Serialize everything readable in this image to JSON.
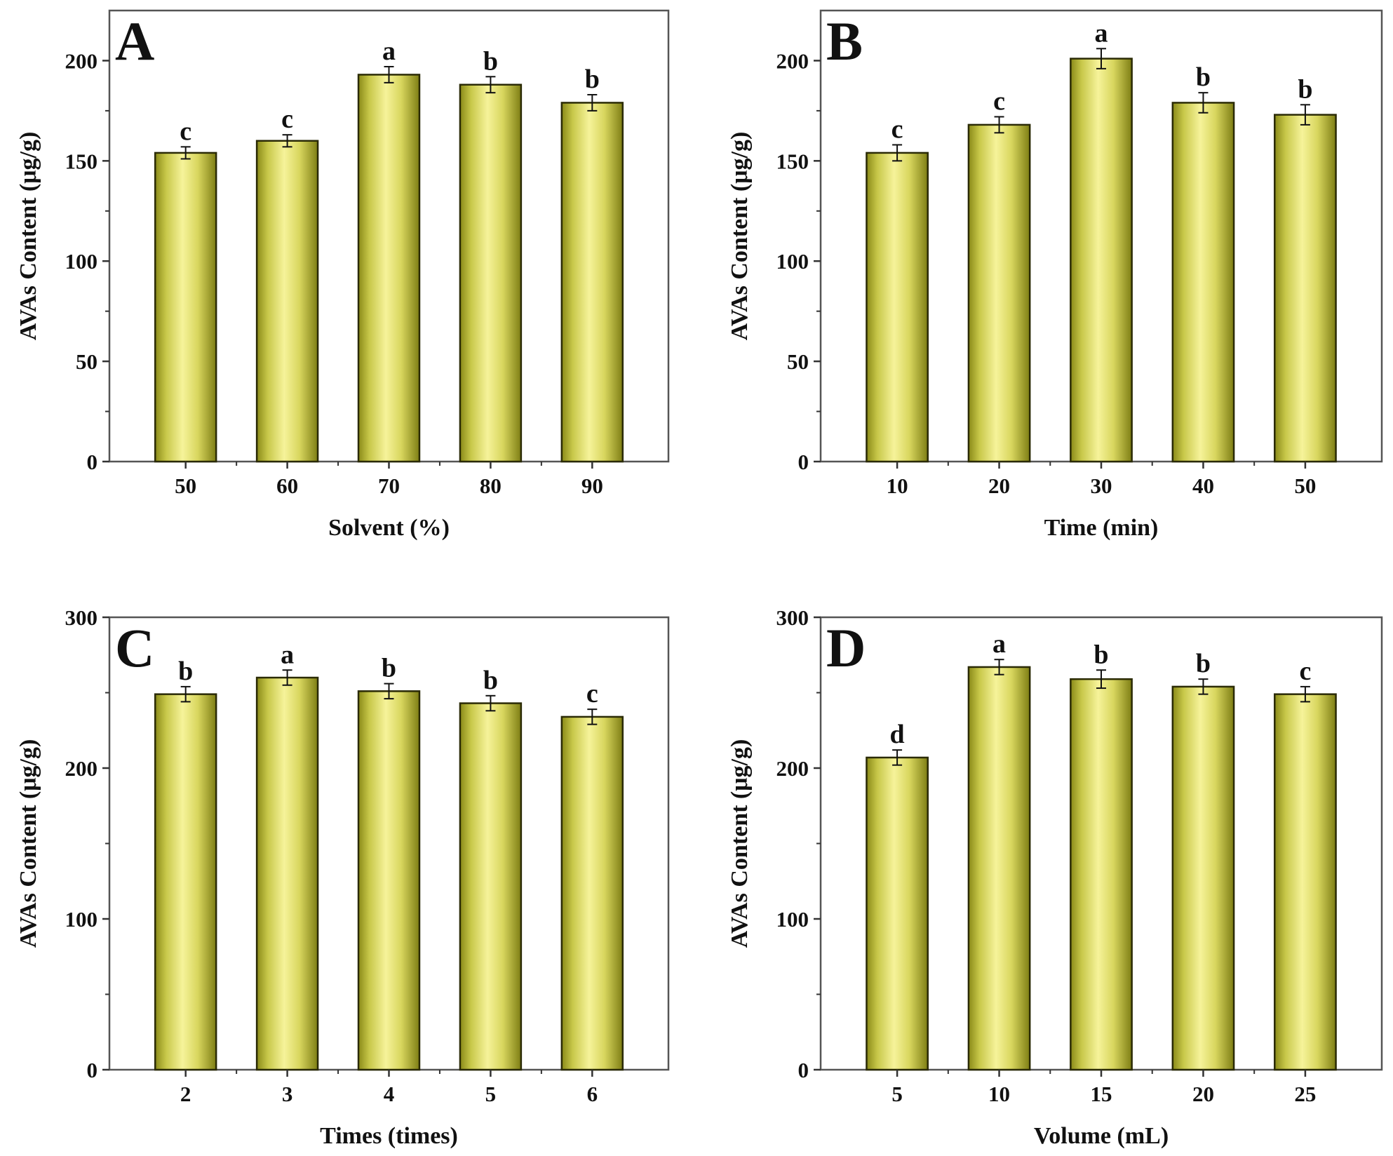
{
  "chart_data": [
    {
      "panel": "A",
      "type": "bar",
      "xlabel": "Solvent (%)",
      "ylabel": "AVAs Content (μg/g)",
      "ylim": [
        0,
        225
      ],
      "yticks": [
        0,
        50,
        100,
        150,
        200
      ],
      "categories": [
        "50",
        "60",
        "70",
        "80",
        "90"
      ],
      "values": [
        154,
        160,
        193,
        188,
        179
      ],
      "errors": [
        3,
        3,
        4,
        4,
        4
      ],
      "significance": [
        "c",
        "c",
        "a",
        "b",
        "b"
      ]
    },
    {
      "panel": "B",
      "type": "bar",
      "xlabel": "Time (min)",
      "ylabel": "AVAs Content (μg/g)",
      "ylim": [
        0,
        225
      ],
      "yticks": [
        0,
        50,
        100,
        150,
        200
      ],
      "categories": [
        "10",
        "20",
        "30",
        "40",
        "50"
      ],
      "values": [
        154,
        168,
        201,
        179,
        173
      ],
      "errors": [
        4,
        4,
        5,
        5,
        5
      ],
      "significance": [
        "c",
        "c",
        "a",
        "b",
        "b"
      ]
    },
    {
      "panel": "C",
      "type": "bar",
      "xlabel": "Times (times)",
      "ylabel": "AVAs Content (μg/g)",
      "ylim": [
        0,
        300
      ],
      "yticks": [
        0,
        100,
        200,
        300
      ],
      "categories": [
        "2",
        "3",
        "4",
        "5",
        "6"
      ],
      "values": [
        249,
        260,
        251,
        243,
        234
      ],
      "errors": [
        5,
        5,
        5,
        5,
        5
      ],
      "significance": [
        "b",
        "a",
        "b",
        "b",
        "c"
      ]
    },
    {
      "panel": "D",
      "type": "bar",
      "xlabel": "Volume (mL)",
      "ylabel": "AVAs Content (μg/g)",
      "ylim": [
        0,
        300
      ],
      "yticks": [
        0,
        100,
        200,
        300
      ],
      "categories": [
        "5",
        "10",
        "15",
        "20",
        "25"
      ],
      "values": [
        207,
        267,
        259,
        254,
        249
      ],
      "errors": [
        5,
        5,
        6,
        5,
        5
      ],
      "significance": [
        "d",
        "a",
        "b",
        "b",
        "c"
      ]
    }
  ]
}
